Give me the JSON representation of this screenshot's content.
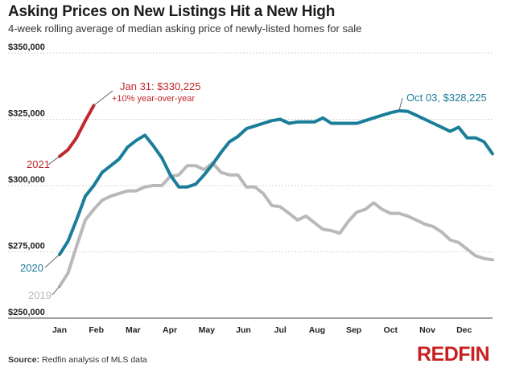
{
  "header": {
    "title": "Asking Prices on New Listings Hit a New High",
    "subtitle": "4-week rolling average of median asking price of newly-listed homes for sale"
  },
  "footer": {
    "source_label": "Source:",
    "source_text": "Redfin analysis of MLS data",
    "logo_text": "REDFIN"
  },
  "colors": {
    "2021": "#c0282d",
    "2020": "#1a7d99",
    "2019": "#b9b9b9",
    "axis": "#444444",
    "grid": "#c8c8c8"
  },
  "chart_data": {
    "type": "line",
    "title": "Asking Prices on New Listings Hit a New High",
    "ylim": [
      250000,
      350000
    ],
    "xlim": [
      1,
      13
    ],
    "yticks": [
      {
        "value": 250000,
        "label": "$250,000"
      },
      {
        "value": 275000,
        "label": "$275,000"
      },
      {
        "value": 300000,
        "label": "$300,000"
      },
      {
        "value": 325000,
        "label": "$325,000"
      },
      {
        "value": 350000,
        "label": "$350,000"
      }
    ],
    "xticks": [
      {
        "value": 1,
        "label": "Jan"
      },
      {
        "value": 2,
        "label": "Feb"
      },
      {
        "value": 3,
        "label": "Mar"
      },
      {
        "value": 4,
        "label": "Apr"
      },
      {
        "value": 5,
        "label": "May"
      },
      {
        "value": 6,
        "label": "Jun"
      },
      {
        "value": 7,
        "label": "Jul"
      },
      {
        "value": 8,
        "label": "Aug"
      },
      {
        "value": 9,
        "label": "Sep"
      },
      {
        "value": 10,
        "label": "Oct"
      },
      {
        "value": 11,
        "label": "Nov"
      },
      {
        "value": 12,
        "label": "Dec"
      }
    ],
    "grid": true,
    "series": [
      {
        "name": "2019",
        "x": [
          1.0,
          1.23,
          1.46,
          1.7,
          1.93,
          2.16,
          2.39,
          2.62,
          2.85,
          3.08,
          3.32,
          3.55,
          3.78,
          4.01,
          4.24,
          4.47,
          4.7,
          4.93,
          5.16,
          5.39,
          5.62,
          5.85,
          6.08,
          6.31,
          6.54,
          6.77,
          7.0,
          7.24,
          7.47,
          7.7,
          7.93,
          8.16,
          8.39,
          8.62,
          8.85,
          9.08,
          9.31,
          9.54,
          9.77,
          10.0,
          10.23,
          10.46,
          10.7,
          10.93,
          11.16,
          11.39,
          11.62,
          11.85,
          12.08,
          12.31,
          12.54,
          12.77
        ],
        "values": [
          262000,
          267000,
          277000,
          287000,
          291000,
          294500,
          296000,
          297000,
          298000,
          298000,
          299500,
          300000,
          300000,
          303500,
          304000,
          307500,
          307500,
          306000,
          308500,
          305000,
          304000,
          304000,
          299500,
          299500,
          297000,
          292500,
          292000,
          289500,
          287000,
          288500,
          286000,
          283500,
          283000,
          282000,
          286500,
          290000,
          291000,
          293500,
          291000,
          289500,
          289500,
          288500,
          287000,
          285500,
          284500,
          282500,
          279500,
          278500,
          276000,
          273500,
          272500,
          272000
        ]
      },
      {
        "name": "2020",
        "x": [
          1.0,
          1.23,
          1.46,
          1.7,
          1.93,
          2.16,
          2.39,
          2.62,
          2.85,
          3.08,
          3.32,
          3.55,
          3.78,
          4.01,
          4.24,
          4.47,
          4.7,
          4.93,
          5.16,
          5.39,
          5.62,
          5.85,
          6.08,
          6.31,
          6.54,
          6.77,
          7.0,
          7.24,
          7.47,
          7.7,
          7.93,
          8.16,
          8.39,
          8.62,
          8.85,
          9.08,
          9.31,
          9.54,
          9.77,
          10.0,
          10.23,
          10.46,
          10.7,
          10.93,
          11.16,
          11.39,
          11.62,
          11.85,
          12.08,
          12.31,
          12.54,
          12.77
        ],
        "values": [
          274000,
          279000,
          287000,
          296000,
          300000,
          305000,
          307500,
          310000,
          314500,
          317000,
          319000,
          315000,
          310500,
          304000,
          299500,
          299500,
          300500,
          304000,
          308000,
          312500,
          316500,
          318500,
          321500,
          322500,
          323500,
          324500,
          325000,
          323500,
          324000,
          324000,
          324000,
          325500,
          323500,
          323500,
          323500,
          323500,
          324500,
          325500,
          326500,
          327500,
          328225,
          328000,
          326500,
          325000,
          323500,
          322000,
          320500,
          322000,
          318000,
          318000,
          316500,
          312000
        ]
      },
      {
        "name": "2021",
        "x": [
          1.0,
          1.23,
          1.46,
          1.7,
          1.93
        ],
        "values": [
          311000,
          313500,
          318000,
          324500,
          330225
        ]
      }
    ],
    "annotations": [
      {
        "series": "2021",
        "text": "Jan 31: $330,225",
        "text2": "+10% year-over-year",
        "x": 1.93,
        "y": 330225
      },
      {
        "series": "2020",
        "text": "Oct 03, $328,225",
        "x": 10.23,
        "y": 328225
      }
    ],
    "series_labels": [
      {
        "series": "2021",
        "text": "2021"
      },
      {
        "series": "2020",
        "text": "2020"
      },
      {
        "series": "2019",
        "text": "2019"
      }
    ]
  }
}
